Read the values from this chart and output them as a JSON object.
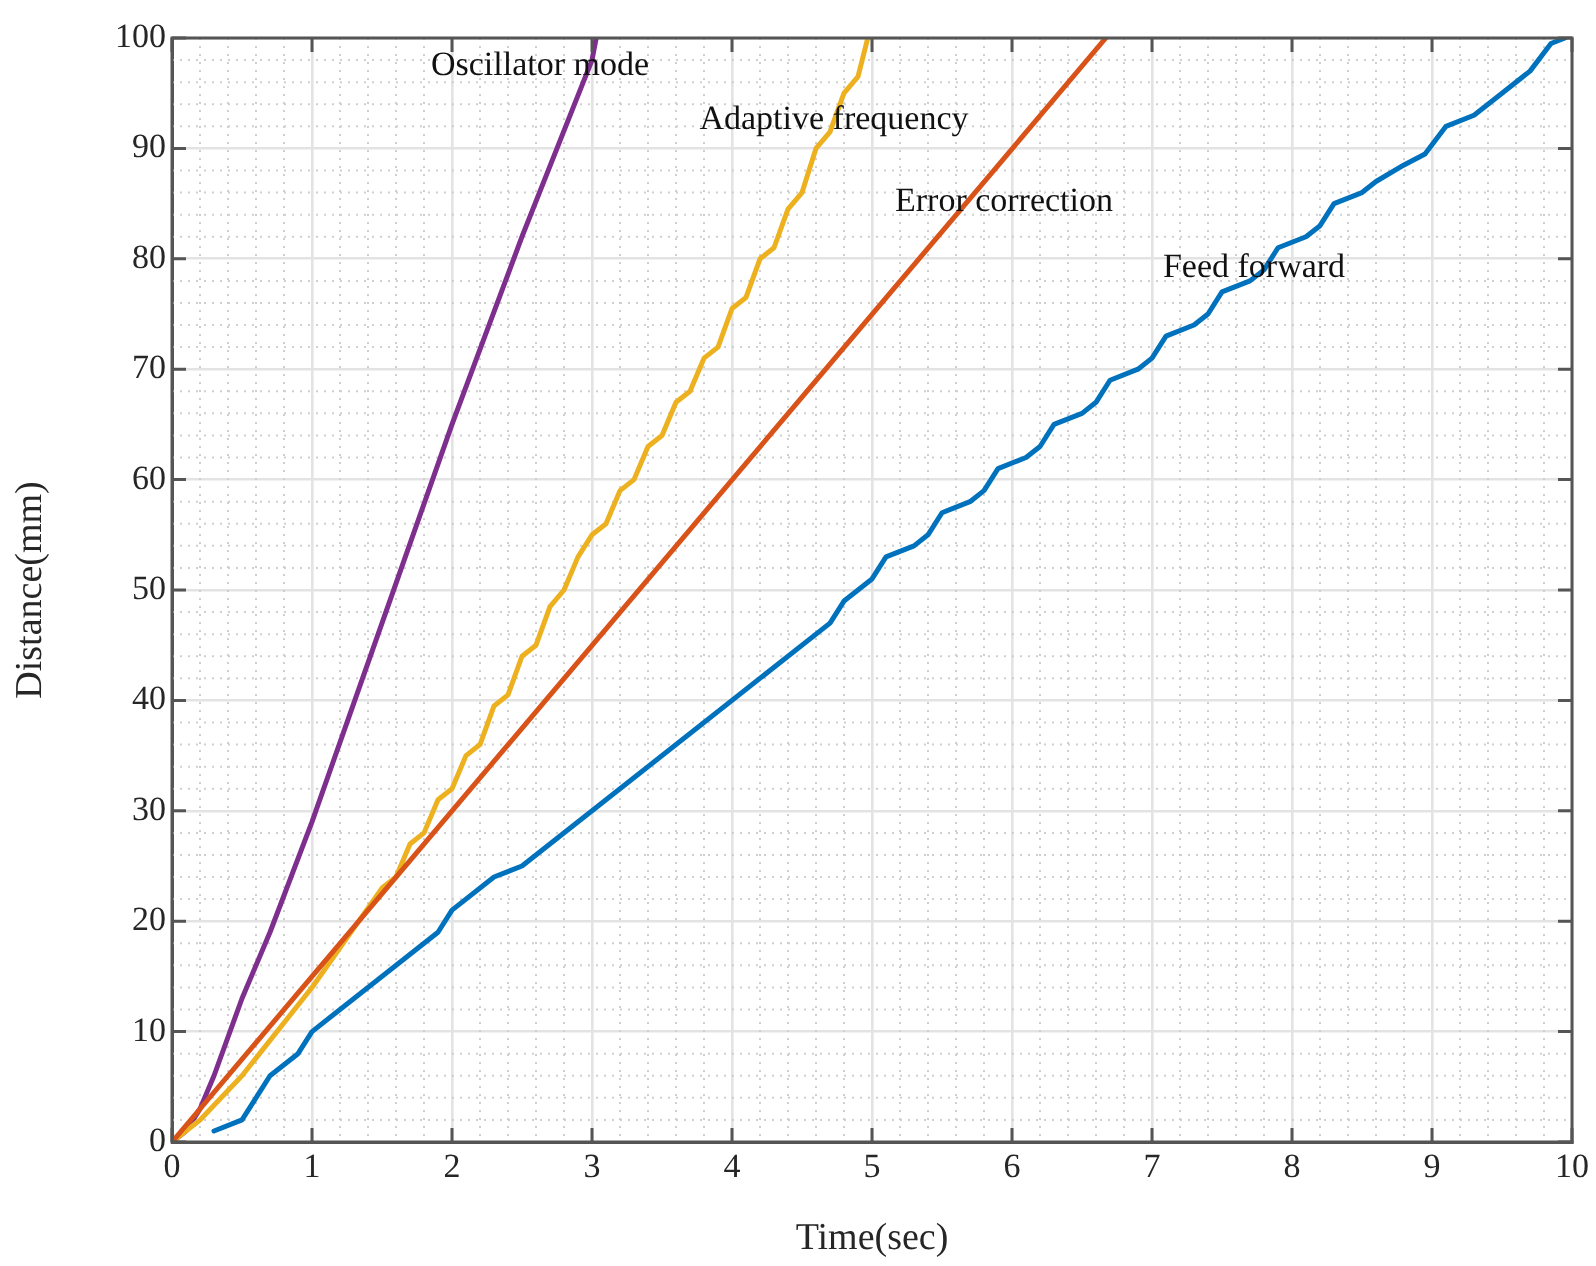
{
  "chart_data": {
    "type": "line",
    "xlabel": "Time(sec)",
    "ylabel": "Distance(mm)",
    "xlim": [
      0,
      10
    ],
    "ylim": [
      0,
      100
    ],
    "xticks": [
      0,
      1,
      2,
      3,
      4,
      5,
      6,
      7,
      8,
      9,
      10
    ],
    "yticks": [
      0,
      10,
      20,
      30,
      40,
      50,
      60,
      70,
      80,
      90,
      100
    ],
    "grid": true,
    "marker": "none",
    "line_style": "solid",
    "series": [
      {
        "name": "Feed forward",
        "color": "#0072bd",
        "x": [
          0.3,
          0.5,
          0.7,
          0.9,
          1,
          1.9,
          2,
          2.3,
          2.5,
          4.7,
          4.8,
          5,
          5.1,
          5.3,
          5.4,
          5.5,
          5.7,
          5.8,
          5.9,
          6.1,
          6.2,
          6.3,
          6.5,
          6.6,
          6.7,
          6.9,
          7,
          7.1,
          7.3,
          7.4,
          7.5,
          7.7,
          7.8,
          7.9,
          8.1,
          8.2,
          8.3,
          8.5,
          8.6,
          8.8,
          8.95,
          9.1,
          9.3,
          9.5,
          9.7,
          9.85,
          9.95
        ],
        "values": [
          1,
          2,
          6,
          8,
          10,
          19,
          21,
          24,
          25,
          47,
          49,
          51,
          53,
          54,
          55,
          57,
          58,
          59,
          61,
          62,
          63,
          65,
          66,
          67,
          69,
          70,
          71,
          73,
          74,
          75,
          77,
          78,
          79,
          81,
          82,
          83,
          85,
          86,
          87,
          88.5,
          89.5,
          92,
          93,
          95,
          97,
          99.5,
          100
        ]
      },
      {
        "name": "Error correction",
        "color": "#d95319",
        "x": [
          0,
          6.67
        ],
        "values": [
          0,
          100
        ]
      },
      {
        "name": "Adaptive frequency",
        "color": "#edb120",
        "x": [
          0,
          0.2,
          0.5,
          1,
          1.5,
          1.6,
          1.7,
          1.8,
          1.9,
          2,
          2.1,
          2.2,
          2.3,
          2.4,
          2.5,
          2.6,
          2.7,
          2.8,
          2.9,
          3,
          3.1,
          3.2,
          3.3,
          3.4,
          3.5,
          3.6,
          3.7,
          3.8,
          3.9,
          4,
          4.1,
          4.2,
          4.3,
          4.4,
          4.5,
          4.6,
          4.7,
          4.8,
          4.9,
          4.97
        ],
        "values": [
          0,
          2,
          6,
          14,
          23,
          24,
          27,
          28,
          31,
          32,
          35,
          36,
          39.5,
          40.5,
          44,
          45,
          48.5,
          50,
          53,
          55,
          56,
          59,
          60,
          63,
          64,
          67,
          68,
          71,
          72,
          75.5,
          76.5,
          80,
          81,
          84.5,
          86,
          90,
          91.5,
          95,
          96.5,
          100
        ]
      },
      {
        "name": "Oscillator mode",
        "color": "#7e2f8e",
        "x": [
          0,
          0.1,
          0.2,
          0.3,
          0.5,
          0.7,
          1,
          1.5,
          2,
          2.5,
          3,
          3.03
        ],
        "values": [
          0,
          1,
          3,
          6,
          13,
          19,
          29,
          47,
          65,
          82,
          98,
          100
        ]
      }
    ]
  }
}
